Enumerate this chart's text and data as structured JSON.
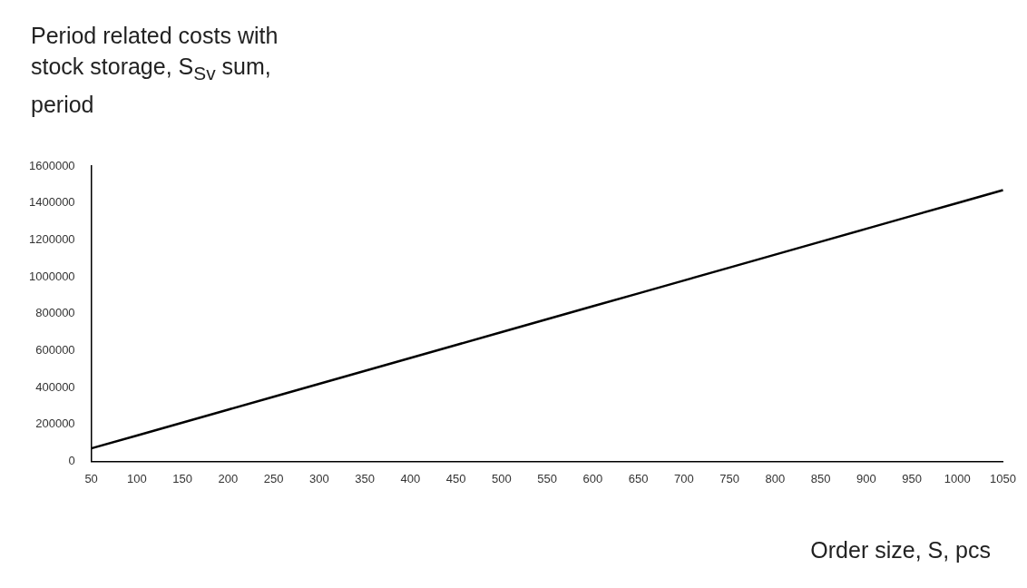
{
  "chart_data": {
    "type": "line",
    "title": "Period related costs with stock storage, S$_{Sv}$ sum, period",
    "xlabel": "Order size, S, pcs",
    "categories": [
      "50",
      "100",
      "150",
      "200",
      "250",
      "300",
      "350",
      "400",
      "450",
      "500",
      "550",
      "600",
      "650",
      "700",
      "750",
      "800",
      "850",
      "900",
      "950",
      "1000",
      "1050"
    ],
    "values": [
      70000,
      140000,
      210000,
      280000,
      350000,
      420000,
      490000,
      560000,
      630000,
      700000,
      770000,
      840000,
      910000,
      980000,
      1050000,
      1120000,
      1190000,
      1260000,
      1330000,
      1400000,
      1470000
    ],
    "color": "#000000",
    "ylim": [
      0,
      1600000
    ],
    "yticks": [
      0,
      200000,
      400000,
      600000,
      800000,
      1000000,
      1200000,
      1400000,
      1600000
    ],
    "grid": false,
    "legend": false,
    "marker": "none",
    "line_style": "solid"
  }
}
